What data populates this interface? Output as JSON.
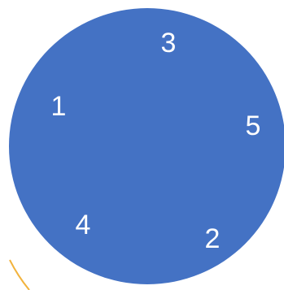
{
  "diagram": {
    "circle_color": "#4472C4",
    "arc_color": "#F2B33D",
    "numbers": [
      "3",
      "1",
      "5",
      "4",
      "2"
    ]
  }
}
